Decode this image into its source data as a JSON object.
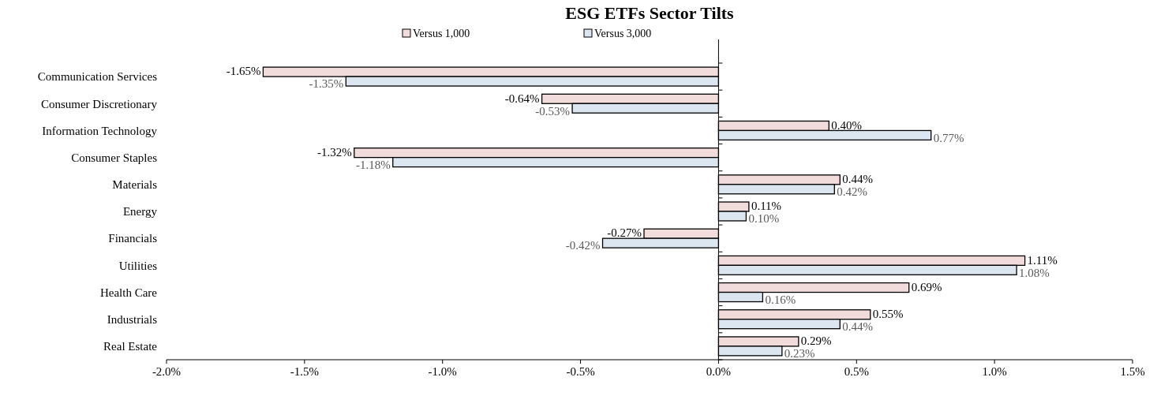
{
  "chart_data": {
    "type": "bar",
    "orientation": "horizontal",
    "title": "ESG ETFs Sector Tilts",
    "legend": "top",
    "categories": [
      "Communication Services",
      "Consumer Discretionary",
      "Information Technology",
      "Consumer Staples",
      "Materials",
      "Energy",
      "Financials",
      "Utilities",
      "Health Care",
      "Industrials",
      "Real Estate"
    ],
    "series": [
      {
        "name": "Versus 1,000",
        "color": "#f2dcdb",
        "values": [
          -1.65,
          -0.64,
          0.4,
          -1.32,
          0.44,
          0.11,
          -0.27,
          1.11,
          0.69,
          0.55,
          0.29
        ],
        "value_labels": [
          "-1.65%",
          "-0.64%",
          "0.40%",
          "-1.32%",
          "0.44%",
          "0.11%",
          "-0.27%",
          "1.11%",
          "0.69%",
          "0.55%",
          "0.29%"
        ]
      },
      {
        "name": "Versus 3,000",
        "color": "#dce6f1",
        "values": [
          -1.35,
          -0.53,
          0.77,
          -1.18,
          0.42,
          0.1,
          -0.42,
          1.08,
          0.16,
          0.44,
          0.23
        ],
        "value_labels": [
          "-1.35%",
          "-0.53%",
          "0.77%",
          "-1.18%",
          "0.42%",
          "0.10%",
          "-0.42%",
          "1.08%",
          "0.16%",
          "0.44%",
          "0.23%"
        ]
      }
    ],
    "xlim": [
      -2.0,
      1.5
    ],
    "xticks": [
      {
        "value": -2.0,
        "label": "-2.0%"
      },
      {
        "value": -1.5,
        "label": "-1.5%"
      },
      {
        "value": -1.0,
        "label": "-1.0%"
      },
      {
        "value": -0.5,
        "label": "-0.5%"
      },
      {
        "value": 0,
        "label": "0.0%"
      },
      {
        "value": 0.5,
        "label": "0.5%"
      },
      {
        "value": 1.0,
        "label": "1.0%"
      },
      {
        "value": 1.5,
        "label": "1.5%"
      }
    ]
  }
}
